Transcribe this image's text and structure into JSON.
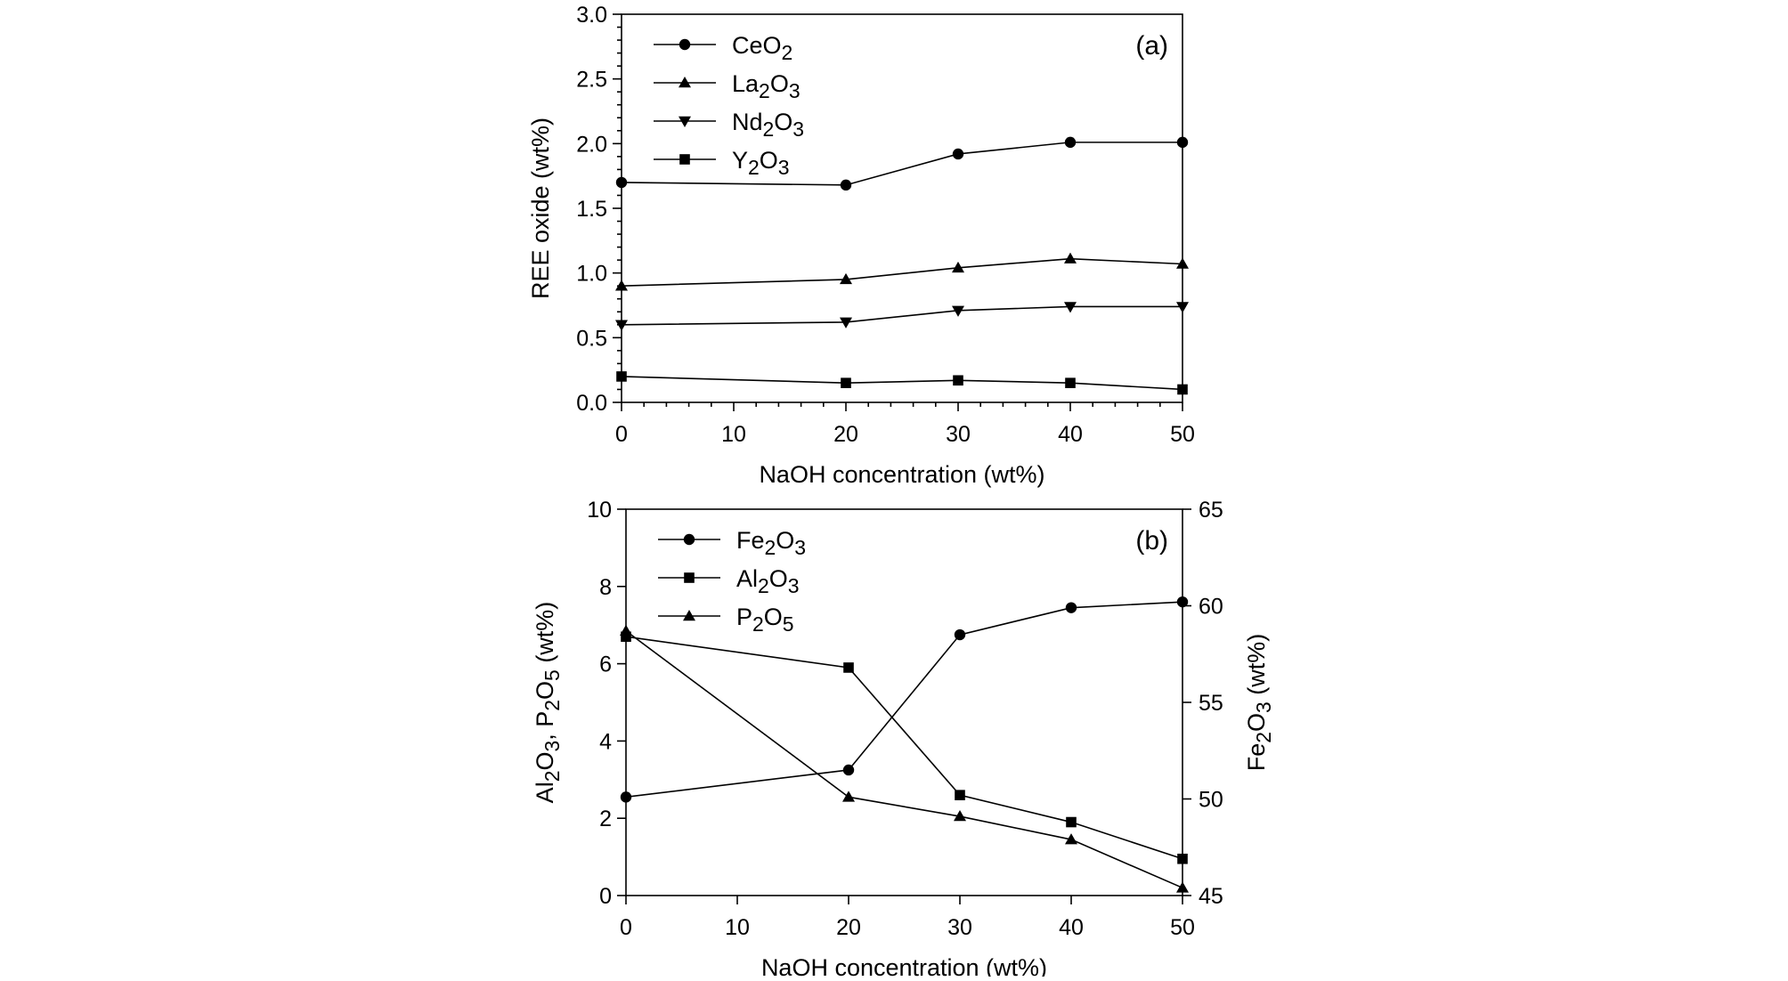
{
  "chart_data": [
    {
      "type": "line",
      "panel_label": "(a)",
      "x": [
        0,
        20,
        30,
        40,
        50
      ],
      "xlim": [
        0,
        50
      ],
      "xticks": [
        "0",
        "10",
        "20",
        "30",
        "40",
        "50"
      ],
      "xtick_values": [
        0,
        10,
        20,
        30,
        40,
        50
      ],
      "xlabel": "NaOH concentration (wt%)",
      "ylim": [
        0,
        3.0
      ],
      "yticks": [
        "0.0",
        "0.5",
        "1.0",
        "1.5",
        "2.0",
        "2.5",
        "3.0"
      ],
      "ytick_values": [
        0,
        0.5,
        1.0,
        1.5,
        2.0,
        2.5,
        3.0
      ],
      "ylabel": "REE oxide (wt%)",
      "legend_position": "top-left",
      "series": [
        {
          "name": "CeO",
          "sub": "2",
          "suffix": "",
          "marker": "circle",
          "values": [
            1.7,
            1.68,
            1.92,
            2.01,
            2.01
          ]
        },
        {
          "name": "La",
          "sub": "2",
          "suffix": "O",
          "sub2": "3",
          "marker": "triangle-up",
          "values": [
            0.9,
            0.95,
            1.04,
            1.11,
            1.07
          ]
        },
        {
          "name": "Nd",
          "sub": "2",
          "suffix": "O",
          "sub2": "3",
          "marker": "triangle-down",
          "values": [
            0.6,
            0.62,
            0.71,
            0.74,
            0.74
          ]
        },
        {
          "name": "Y",
          "sub": "2",
          "suffix": "O",
          "sub2": "3",
          "marker": "square",
          "values": [
            0.2,
            0.15,
            0.17,
            0.15,
            0.1
          ]
        }
      ]
    },
    {
      "type": "line",
      "panel_label": "(b)",
      "x": [
        0,
        20,
        30,
        40,
        50
      ],
      "xlim": [
        0,
        50
      ],
      "xticks": [
        "0",
        "10",
        "20",
        "30",
        "40",
        "50"
      ],
      "xtick_values": [
        0,
        10,
        20,
        30,
        40,
        50
      ],
      "xlabel": "NaOH concentration (wt%)",
      "ylim": [
        0,
        10
      ],
      "yticks": [
        "0",
        "2",
        "4",
        "6",
        "8",
        "10"
      ],
      "ytick_values": [
        0,
        2,
        4,
        6,
        8,
        10
      ],
      "ylabel_parts": [
        "Al",
        "2",
        "O",
        "3",
        ", P",
        "2",
        "O",
        "5",
        " (wt%)"
      ],
      "y2lim": [
        45,
        65
      ],
      "y2ticks": [
        "45",
        "50",
        "55",
        "60",
        "65"
      ],
      "y2tick_values": [
        45,
        50,
        55,
        60,
        65
      ],
      "y2label_parts": [
        "Fe",
        "2",
        "O",
        "3",
        " (wt%)"
      ],
      "legend_position": "top-left",
      "series": [
        {
          "name": "Fe",
          "sub": "2",
          "suffix": "O",
          "sub2": "3",
          "marker": "circle",
          "axis": "right",
          "values": [
            50.1,
            51.5,
            58.5,
            59.9,
            60.2
          ]
        },
        {
          "name": "Al",
          "sub": "2",
          "suffix": "O",
          "sub2": "3",
          "marker": "square",
          "axis": "left",
          "values": [
            6.7,
            5.9,
            2.6,
            1.9,
            0.95
          ]
        },
        {
          "name": "P",
          "sub": "2",
          "suffix": "O",
          "sub2": "5",
          "marker": "triangle-up",
          "axis": "left",
          "values": [
            6.85,
            2.55,
            2.05,
            1.45,
            0.2
          ]
        }
      ]
    }
  ]
}
